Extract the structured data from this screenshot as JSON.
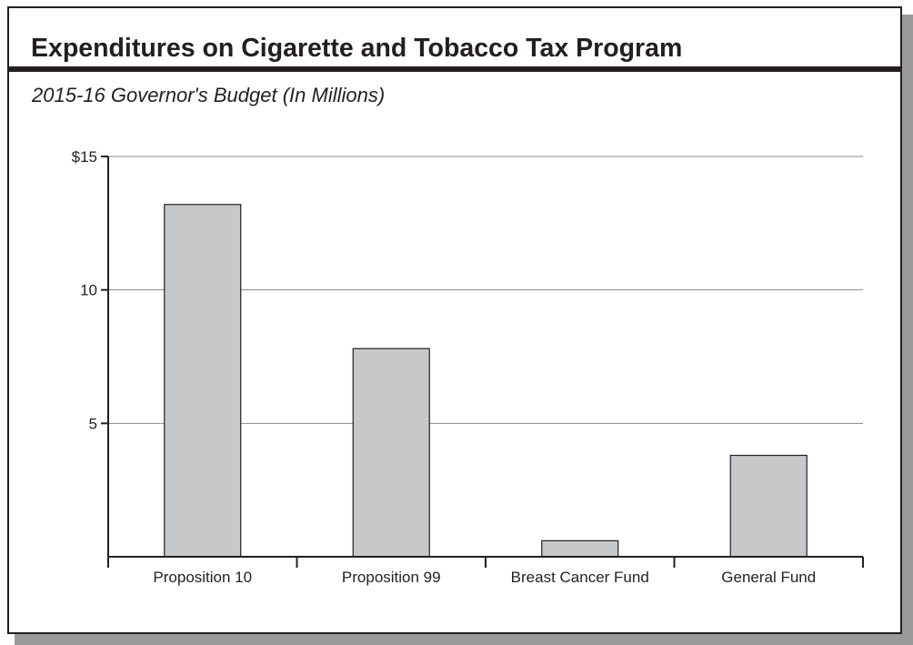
{
  "chart_data": {
    "type": "bar",
    "title": "Expenditures on Cigarette and Tobacco Tax Program",
    "subtitle": "2015-16 Governor's Budget (In Millions)",
    "categories": [
      "Proposition 10",
      "Proposition 99",
      "Breast Cancer Fund",
      "General Fund"
    ],
    "values": [
      13.2,
      7.8,
      0.6,
      3.8
    ],
    "xlabel": "",
    "ylabel": "",
    "ylim": [
      0,
      15
    ],
    "yticks": [
      5,
      10,
      15
    ],
    "ytick_labels": [
      "5",
      "10",
      "$15"
    ],
    "grid": true,
    "legend": "none",
    "bar_color": "#c7c8ca",
    "grid_color": "#8a8a8a",
    "axis_color": "#231f20"
  }
}
